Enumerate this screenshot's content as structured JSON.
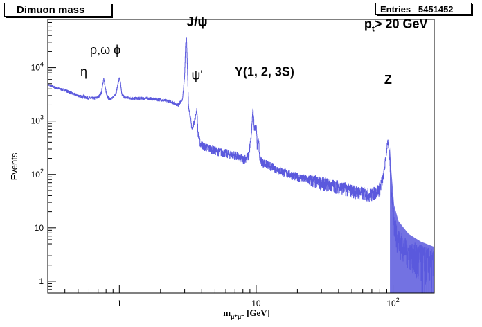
{
  "chart_data": {
    "type": "line",
    "title": "Dimuon mass",
    "stats": {
      "label": "Entries",
      "value": "5451452"
    },
    "xlabel": {
      "prefix": "m",
      "sub": "μ⁺μ⁻",
      "unit": " [GeV]"
    },
    "ylabel": "Events",
    "x_scale": "log",
    "y_scale": "log",
    "xlim": [
      0.3,
      200
    ],
    "ylim": [
      0.6,
      80000
    ],
    "x_tick_labels": [
      {
        "value": 1,
        "base": "1",
        "exp": ""
      },
      {
        "value": 10,
        "base": "10",
        "exp": ""
      },
      {
        "value": 100,
        "base": "10",
        "exp": "2"
      }
    ],
    "y_tick_labels": [
      {
        "value": 1,
        "base": "1",
        "exp": ""
      },
      {
        "value": 10,
        "base": "10",
        "exp": ""
      },
      {
        "value": 100,
        "base": "10",
        "exp": "2"
      },
      {
        "value": 1000,
        "base": "10",
        "exp": "3"
      },
      {
        "value": 10000,
        "base": "10",
        "exp": "4"
      }
    ],
    "series": [
      {
        "color": "#5b59dd",
        "x": [
          0.3,
          0.35,
          0.4,
          0.45,
          0.5,
          0.54,
          0.55,
          0.56,
          0.6,
          0.65,
          0.7,
          0.74,
          0.77,
          0.79,
          0.81,
          0.84,
          0.9,
          0.95,
          1.0,
          1.02,
          1.04,
          1.1,
          1.3,
          1.6,
          2.0,
          2.4,
          2.7,
          2.9,
          3.0,
          3.05,
          3.097,
          3.13,
          3.2,
          3.4,
          3.6,
          3.686,
          3.75,
          3.9,
          4.2,
          5.0,
          6.0,
          7.0,
          8.0,
          8.8,
          9.2,
          9.46,
          9.7,
          10.02,
          10.2,
          10.36,
          10.6,
          11.0,
          13.0,
          16.0,
          20.0,
          30.0,
          40.0,
          55.0,
          70.0,
          80.0,
          85.0,
          88.0,
          91.2,
          94.0,
          97.0,
          102.0,
          110.0,
          130.0,
          160.0,
          200.0
        ],
        "y": [
          4800,
          4100,
          3800,
          3300,
          3000,
          2800,
          3100,
          2800,
          2700,
          2650,
          2800,
          3400,
          6400,
          4200,
          3000,
          2600,
          2700,
          3500,
          6500,
          5200,
          3200,
          2750,
          2650,
          2650,
          2500,
          2300,
          2000,
          2600,
          7000,
          28000,
          36000,
          15000,
          2000,
          700,
          1200,
          1700,
          600,
          380,
          330,
          280,
          250,
          230,
          190,
          220,
          500,
          1700,
          700,
          860,
          300,
          500,
          210,
          170,
          140,
          110,
          90,
          70,
          60,
          47,
          42,
          55,
          90,
          180,
          430,
          250,
          60,
          12,
          6,
          3.5,
          2.5,
          2
        ]
      }
    ],
    "annotations": [
      {
        "text": "η",
        "x": 0.55,
        "y": 7000,
        "size": 18
      },
      {
        "text": "ρ,ω ϕ",
        "x": 0.79,
        "y": 18000,
        "size": 18
      },
      {
        "text": "J/ψ",
        "x": 3.7,
        "y": 60000,
        "size": 19
      },
      {
        "text": "ψ'",
        "x": 3.7,
        "y": 6000,
        "size": 18
      },
      {
        "text": "Y(1, 2, 3S)",
        "x": 11.5,
        "y": 7000,
        "size": 18
      },
      {
        "text": "Z",
        "x": 92,
        "y": 5000,
        "size": 18
      }
    ],
    "pt_annotation": {
      "base": "p",
      "sub": "t",
      "rest": "> 20 GeV",
      "x": 105,
      "y": 55000
    }
  }
}
